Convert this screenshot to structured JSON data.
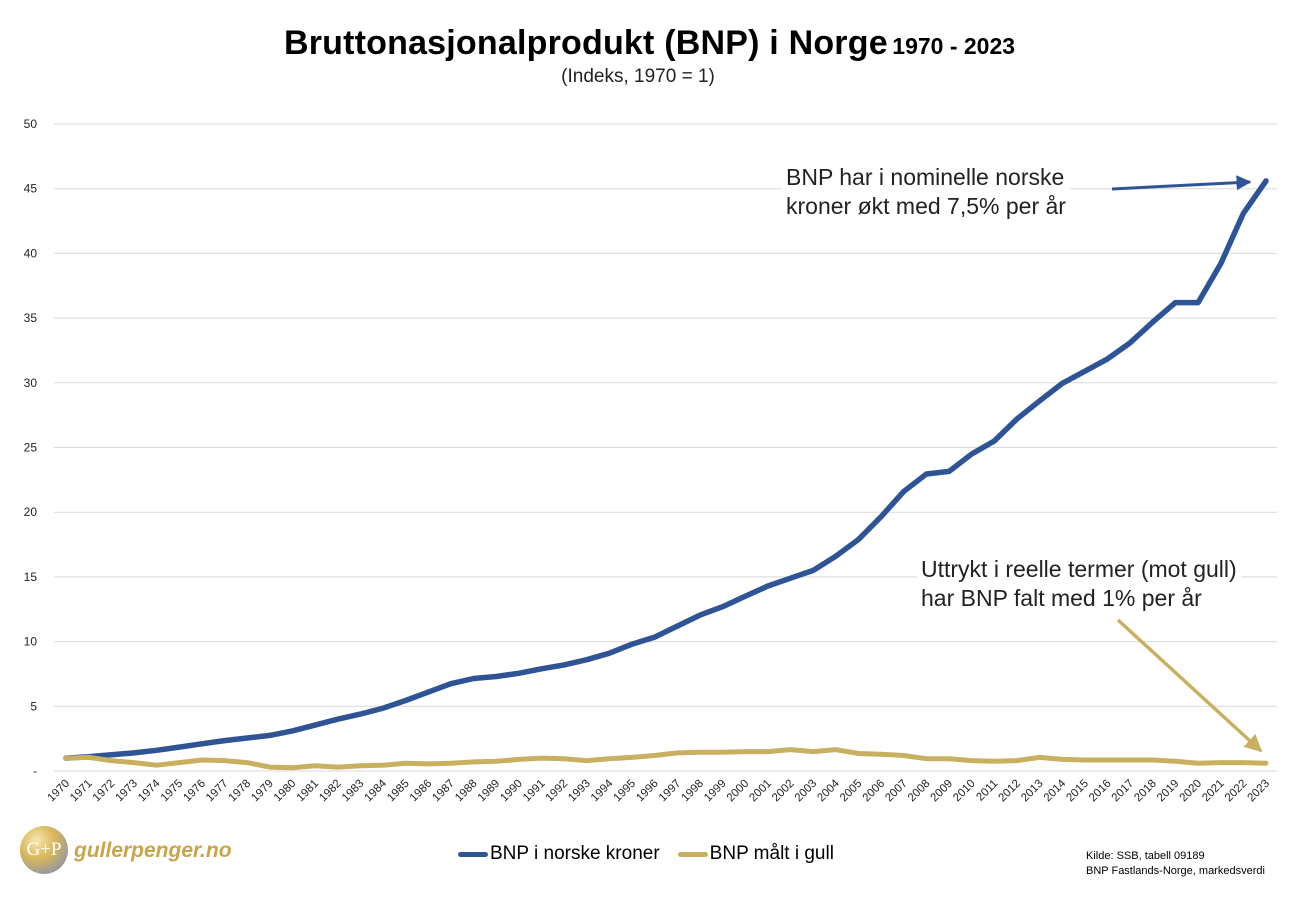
{
  "title": {
    "main": "Bruttonasjonalprodukt (BNP) i Norge",
    "range": "1970 - 2023"
  },
  "subtitle": "(Indeks, 1970 = 1)",
  "annotations": {
    "nominal_line1": "BNP har i nominelle norske",
    "nominal_line2": "kroner økt med 7,5% per år",
    "gold_line1": "Uttrykt i reelle termer (mot gull)",
    "gold_line2": "har BNP falt med 1% per år"
  },
  "logo": {
    "mark": "G+P",
    "text": "gullerpenger.no"
  },
  "source": {
    "line1": "Kilde: SSB, tabell 09189",
    "line2": "BNP Fastlands-Norge, markedsverdi"
  },
  "colors": {
    "nok": "#2f5496",
    "gold": "#c9b060",
    "grid": "#d9d9d9",
    "arrow_nok": "#2f5496",
    "arrow_gold": "#c9b060"
  },
  "chart_data": {
    "type": "line",
    "x": [
      "1970",
      "1971",
      "1972",
      "1973",
      "1974",
      "1975",
      "1976",
      "1977",
      "1978",
      "1979",
      "1980",
      "1981",
      "1982",
      "1983",
      "1984",
      "1985",
      "1986",
      "1987",
      "1988",
      "1989",
      "1990",
      "1991",
      "1992",
      "1993",
      "1994",
      "1995",
      "1996",
      "1997",
      "1998",
      "1999",
      "2000",
      "2001",
      "2002",
      "2003",
      "2004",
      "2005",
      "2006",
      "2007",
      "2008",
      "2009",
      "2010",
      "2011",
      "2012",
      "2013",
      "2014",
      "2015",
      "2016",
      "2017",
      "2018",
      "2019",
      "2020",
      "2021",
      "2022",
      "2023"
    ],
    "ylim": [
      0,
      50
    ],
    "yticks": [
      "-",
      "5",
      "10",
      "15",
      "20",
      "25",
      "30",
      "35",
      "40",
      "45",
      "50"
    ],
    "grid": true,
    "legend_position": "bottom",
    "series": [
      {
        "name": "BNP i norske kroner",
        "color": "#2f5496",
        "values": [
          1.0,
          1.1,
          1.25,
          1.4,
          1.6,
          1.85,
          2.1,
          2.35,
          2.55,
          2.75,
          3.1,
          3.55,
          4.0,
          4.4,
          4.85,
          5.45,
          6.1,
          6.75,
          7.15,
          7.3,
          7.55,
          7.9,
          8.2,
          8.6,
          9.1,
          9.8,
          10.35,
          11.2,
          12.05,
          12.7,
          13.5,
          14.3,
          14.9,
          15.5,
          16.6,
          17.9,
          19.65,
          21.6,
          22.95,
          23.15,
          24.5,
          25.5,
          27.2,
          28.6,
          29.95,
          30.9,
          31.85,
          33.1,
          34.7,
          36.2,
          36.2,
          39.2,
          43.1,
          45.6
        ]
      },
      {
        "name": "BNP målt i gull",
        "color": "#c9b060",
        "values": [
          1.0,
          1.05,
          0.8,
          0.65,
          0.45,
          0.65,
          0.85,
          0.8,
          0.65,
          0.3,
          0.25,
          0.4,
          0.3,
          0.4,
          0.45,
          0.6,
          0.55,
          0.6,
          0.7,
          0.75,
          0.9,
          1.0,
          0.95,
          0.8,
          0.95,
          1.05,
          1.2,
          1.4,
          1.45,
          1.45,
          1.5,
          1.5,
          1.65,
          1.5,
          1.65,
          1.35,
          1.3,
          1.2,
          0.95,
          0.95,
          0.8,
          0.75,
          0.8,
          1.05,
          0.9,
          0.85,
          0.85,
          0.85,
          0.85,
          0.75,
          0.6,
          0.65,
          0.65,
          0.6
        ]
      }
    ]
  }
}
